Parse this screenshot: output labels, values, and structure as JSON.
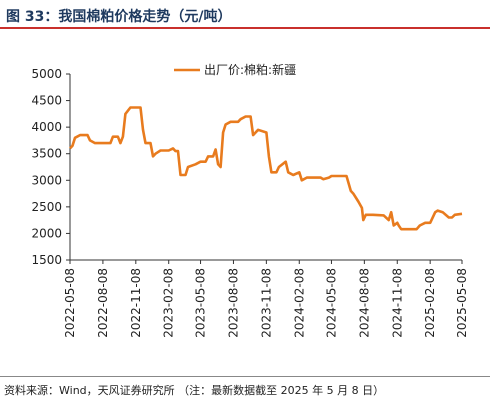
{
  "figure": {
    "title": "图 33：我国棉粕价格走势（元/吨）",
    "source": "资料来源：Wind，天风证券研究所    （注：最新数据截至 2025 年 5 月 8 日）"
  },
  "chart_data": {
    "type": "line",
    "title": "",
    "xlabel": "",
    "ylabel": "",
    "ylim": [
      1500,
      5000
    ],
    "yticks": [
      1500,
      2000,
      2500,
      3000,
      3500,
      4000,
      4500,
      5000
    ],
    "xlim": [
      "2022-05-08",
      "2025-05-08"
    ],
    "xticks": [
      "2022-05-08",
      "2022-08-08",
      "2022-11-08",
      "2023-02-08",
      "2023-05-08",
      "2023-08-08",
      "2023-11-08",
      "2024-02-08",
      "2024-05-08",
      "2024-08-08",
      "2024-11-08",
      "2025-02-08",
      "2025-05-08"
    ],
    "grid": false,
    "legend": "top-center",
    "series": [
      {
        "name": "出厂价:棉粕:新疆",
        "color": "#e87b1e",
        "points": [
          [
            "2022-05-08",
            3600
          ],
          [
            "2022-05-15",
            3650
          ],
          [
            "2022-05-22",
            3800
          ],
          [
            "2022-06-05",
            3850
          ],
          [
            "2022-06-26",
            3850
          ],
          [
            "2022-07-03",
            3750
          ],
          [
            "2022-07-17",
            3700
          ],
          [
            "2022-08-08",
            3700
          ],
          [
            "2022-08-29",
            3700
          ],
          [
            "2022-09-05",
            3820
          ],
          [
            "2022-09-19",
            3820
          ],
          [
            "2022-09-26",
            3700
          ],
          [
            "2022-10-03",
            3820
          ],
          [
            "2022-10-10",
            4250
          ],
          [
            "2022-10-24",
            4370
          ],
          [
            "2022-11-21",
            4370
          ],
          [
            "2022-11-28",
            3950
          ],
          [
            "2022-12-05",
            3700
          ],
          [
            "2022-12-19",
            3700
          ],
          [
            "2022-12-26",
            3450
          ],
          [
            "2023-01-02",
            3500
          ],
          [
            "2023-01-16",
            3560
          ],
          [
            "2023-02-08",
            3560
          ],
          [
            "2023-02-20",
            3600
          ],
          [
            "2023-02-27",
            3550
          ],
          [
            "2023-03-06",
            3550
          ],
          [
            "2023-03-13",
            3100
          ],
          [
            "2023-03-27",
            3100
          ],
          [
            "2023-04-03",
            3250
          ],
          [
            "2023-04-24",
            3300
          ],
          [
            "2023-05-08",
            3350
          ],
          [
            "2023-05-22",
            3350
          ],
          [
            "2023-05-29",
            3450
          ],
          [
            "2023-06-12",
            3450
          ],
          [
            "2023-06-19",
            3580
          ],
          [
            "2023-06-26",
            3300
          ],
          [
            "2023-07-03",
            3250
          ],
          [
            "2023-07-10",
            3900
          ],
          [
            "2023-07-17",
            4050
          ],
          [
            "2023-07-31",
            4100
          ],
          [
            "2023-08-21",
            4100
          ],
          [
            "2023-08-28",
            4150
          ],
          [
            "2023-09-11",
            4200
          ],
          [
            "2023-09-25",
            4200
          ],
          [
            "2023-10-02",
            3850
          ],
          [
            "2023-10-16",
            3950
          ],
          [
            "2023-11-08",
            3900
          ],
          [
            "2023-11-15",
            3450
          ],
          [
            "2023-11-22",
            3150
          ],
          [
            "2023-12-06",
            3150
          ],
          [
            "2023-12-13",
            3250
          ],
          [
            "2024-01-01",
            3350
          ],
          [
            "2024-01-08",
            3150
          ],
          [
            "2024-01-22",
            3100
          ],
          [
            "2024-02-08",
            3150
          ],
          [
            "2024-02-15",
            3000
          ],
          [
            "2024-02-29",
            3050
          ],
          [
            "2024-03-14",
            3050
          ],
          [
            "2024-04-08",
            3050
          ],
          [
            "2024-04-15",
            3020
          ],
          [
            "2024-05-01",
            3050
          ],
          [
            "2024-05-08",
            3080
          ],
          [
            "2024-05-22",
            3080
          ],
          [
            "2024-06-19",
            3080
          ],
          [
            "2024-07-01",
            2800
          ],
          [
            "2024-07-08",
            2750
          ],
          [
            "2024-07-22",
            2600
          ],
          [
            "2024-08-01",
            2480
          ],
          [
            "2024-08-05",
            2250
          ],
          [
            "2024-08-12",
            2350
          ],
          [
            "2024-09-01",
            2350
          ],
          [
            "2024-10-01",
            2340
          ],
          [
            "2024-10-15",
            2250
          ],
          [
            "2024-10-22",
            2400
          ],
          [
            "2024-10-29",
            2150
          ],
          [
            "2024-11-08",
            2200
          ],
          [
            "2024-11-12",
            2150
          ],
          [
            "2024-11-19",
            2080
          ],
          [
            "2024-12-01",
            2080
          ],
          [
            "2025-01-01",
            2080
          ],
          [
            "2025-01-10",
            2150
          ],
          [
            "2025-01-25",
            2200
          ],
          [
            "2025-02-08",
            2200
          ],
          [
            "2025-02-22",
            2400
          ],
          [
            "2025-03-01",
            2430
          ],
          [
            "2025-03-15",
            2400
          ],
          [
            "2025-04-01",
            2300
          ],
          [
            "2025-04-10",
            2300
          ],
          [
            "2025-04-18",
            2350
          ],
          [
            "2025-05-08",
            2370
          ]
        ]
      }
    ]
  }
}
